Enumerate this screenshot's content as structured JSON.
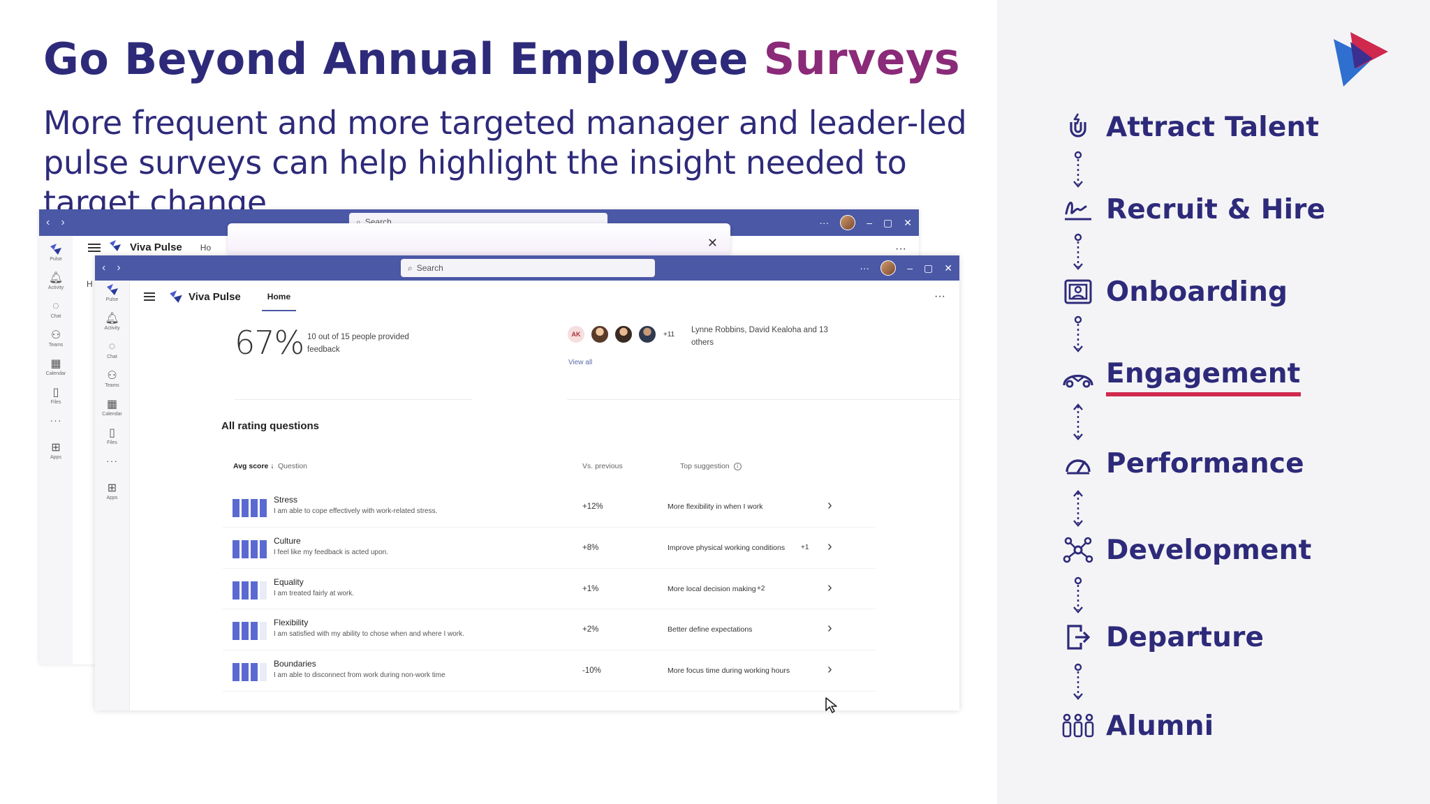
{
  "slide": {
    "title_part1": "Go Beyond Annual Employee",
    "title_part2": "Surveys",
    "subtitle": "More frequent and more targeted manager and leader-led pulse surveys can help highlight the insight needed to target change."
  },
  "journey": {
    "steps": [
      {
        "label": "Attract Talent",
        "icon": "magnet-icon"
      },
      {
        "label": "Recruit & Hire",
        "icon": "signature-icon"
      },
      {
        "label": "Onboarding",
        "icon": "id-card-icon"
      },
      {
        "label": "Engagement",
        "icon": "people-handshake-icon",
        "active": true
      },
      {
        "label": "Performance",
        "icon": "gauge-icon"
      },
      {
        "label": "Development",
        "icon": "network-icon"
      },
      {
        "label": "Departure",
        "icon": "exit-icon"
      },
      {
        "label": "Alumni",
        "icon": "group-icon"
      }
    ],
    "accent_color": "#d0294e",
    "text_color": "#2e2a7a"
  },
  "back_window": {
    "search_placeholder": "Search",
    "app_name": "Viva Pulse",
    "home_tab": "Ho",
    "extra_label": "H",
    "close_symbol": "✕",
    "more_symbol": "···"
  },
  "front_window": {
    "search_placeholder": "Search",
    "app_name": "Viva Pulse",
    "home_tab": "Home",
    "more_symbol": "···",
    "titlebar_color": "#4a58a6"
  },
  "rail": {
    "items": [
      {
        "label": "Pulse",
        "icon": "pulse-icon"
      },
      {
        "label": "Activity",
        "icon": "bell-icon"
      },
      {
        "label": "Chat",
        "icon": "chat-icon"
      },
      {
        "label": "Teams",
        "icon": "teams-icon"
      },
      {
        "label": "Calendar",
        "icon": "calendar-icon"
      },
      {
        "label": "Files",
        "icon": "file-icon"
      }
    ],
    "more": "···",
    "apps_label": "Apps"
  },
  "stats": {
    "percent": "67%",
    "caption": "10 out of 15 people provided feedback",
    "avatar_initials": "AK",
    "avatar_more": "+11",
    "names": "Lynne Robbins, David Kealoha and 13 others",
    "view_all": "View all"
  },
  "rating": {
    "section_title": "All rating questions",
    "columns": {
      "avg_score": "Avg score ↓",
      "question": "Question",
      "vs_previous": "Vs. previous",
      "top_suggestion": "Top suggestion"
    },
    "rows": [
      {
        "name": "Stress",
        "desc": "I am able to cope effectively with work-related stress.",
        "vs": "+12%",
        "suggestion": "More flexibility in when I work",
        "extra": "",
        "score_bars": 4
      },
      {
        "name": "Culture",
        "desc": "I feel like my feedback is acted upon.",
        "vs": "+8%",
        "suggestion": "Improve physical working conditions",
        "extra": "+1",
        "score_bars": 4
      },
      {
        "name": "Equality",
        "desc": "I am treated fairly at work.",
        "vs": "+1%",
        "suggestion": "More local decision making",
        "extra": "+2",
        "score_bars": 3
      },
      {
        "name": "Flexibility",
        "desc": "I am satisfied with my ability to chose when and where I work.",
        "vs": "+2%",
        "suggestion": "Better define expectations",
        "extra": "",
        "score_bars": 3
      },
      {
        "name": "Boundaries",
        "desc": "I am able to disconnect from work during non-work time",
        "vs": "-10%",
        "suggestion": "More focus time during working hours",
        "extra": "",
        "score_bars": 3
      }
    ]
  }
}
